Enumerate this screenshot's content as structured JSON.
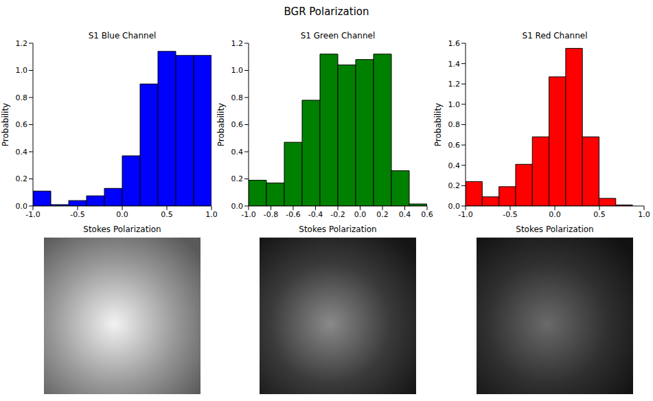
{
  "title": "BGR Polarization",
  "chart_data": [
    {
      "type": "histogram",
      "title": "S1 Blue Channel",
      "x_label": "Stokes Polarization",
      "y_label": "Probability",
      "color": "#0000ff",
      "bins": [
        -1,
        -0.8,
        -0.6,
        -0.4,
        -0.2,
        0,
        0.2,
        0.4,
        0.6,
        0.8,
        1
      ],
      "values": [
        0.11,
        0.01,
        0.04,
        0.075,
        0.13,
        0.37,
        0.9,
        1.14,
        1.11,
        1.11
      ],
      "xlim": [
        -1,
        1
      ],
      "xticks": [
        {
          "value": -1,
          "label": "-1.0"
        },
        {
          "value": -0.5,
          "label": "-0.5"
        },
        {
          "value": 0,
          "label": "0.0"
        },
        {
          "value": 0.5,
          "label": "0.5"
        },
        {
          "value": 1,
          "label": "1.0"
        }
      ],
      "ylim": [
        0,
        1.2
      ],
      "yticks": [
        {
          "value": 0,
          "label": "0.0"
        },
        {
          "value": 0.2,
          "label": "0.2"
        },
        {
          "value": 0.4,
          "label": "0.4"
        },
        {
          "value": 0.6,
          "label": "0.6"
        },
        {
          "value": 0.8,
          "label": "0.8"
        },
        {
          "value": 1,
          "label": "1.0"
        },
        {
          "value": 1.2,
          "label": "1.2"
        }
      ]
    },
    {
      "type": "histogram",
      "title": "S1 Green Channel",
      "x_label": "Stokes Polarization",
      "y_label": "Probability",
      "color": "#008000",
      "bins": [
        -1,
        -0.84,
        -0.68,
        -0.52,
        -0.36,
        -0.2,
        -0.04,
        0.12,
        0.28,
        0.44,
        0.6
      ],
      "values": [
        0.19,
        0.17,
        0.47,
        0.78,
        1.12,
        1.04,
        1.08,
        1.12,
        0.26,
        0.015
      ],
      "xlim": [
        -1,
        0.6
      ],
      "xticks": [
        {
          "value": -1,
          "label": "-1.0"
        },
        {
          "value": -0.8,
          "label": "-0.8"
        },
        {
          "value": -0.6,
          "label": "-0.6"
        },
        {
          "value": -0.4,
          "label": "-0.4"
        },
        {
          "value": -0.2,
          "label": "-0.2"
        },
        {
          "value": 0,
          "label": "0.0"
        },
        {
          "value": 0.2,
          "label": "0.2"
        },
        {
          "value": 0.4,
          "label": "0.4"
        },
        {
          "value": 0.6,
          "label": "0.6"
        }
      ],
      "ylim": [
        0,
        1.2
      ],
      "yticks": [
        {
          "value": 0,
          "label": "0.0"
        },
        {
          "value": 0.2,
          "label": "0.2"
        },
        {
          "value": 0.4,
          "label": "0.4"
        },
        {
          "value": 0.6,
          "label": "0.6"
        },
        {
          "value": 0.8,
          "label": "0.8"
        },
        {
          "value": 1,
          "label": "1.0"
        },
        {
          "value": 1.2,
          "label": "1.2"
        }
      ]
    },
    {
      "type": "histogram",
      "title": "S1 Red Channel",
      "x_label": "Stokes Polarization",
      "y_label": "Probability",
      "color": "#ff0000",
      "bins": [
        -1,
        -0.813,
        -0.626,
        -0.439,
        -0.252,
        -0.065,
        0.122,
        0.309,
        0.496,
        0.683,
        0.87
      ],
      "values": [
        0.24,
        0.09,
        0.19,
        0.41,
        0.68,
        1.27,
        1.55,
        0.68,
        0.075,
        0.01
      ],
      "xlim": [
        -1,
        1
      ],
      "xticks": [
        {
          "value": -1,
          "label": "-1.0"
        },
        {
          "value": -0.5,
          "label": "-0.5"
        },
        {
          "value": 0,
          "label": "0.0"
        },
        {
          "value": 0.5,
          "label": "0.5"
        },
        {
          "value": 1,
          "label": "1.0"
        }
      ],
      "ylim": [
        0,
        1.6
      ],
      "yticks": [
        {
          "value": 0,
          "label": "0.0"
        },
        {
          "value": 0.2,
          "label": "0.2"
        },
        {
          "value": 0.4,
          "label": "0.4"
        },
        {
          "value": 0.6,
          "label": "0.6"
        },
        {
          "value": 0.8,
          "label": "0.8"
        },
        {
          "value": 1,
          "label": "1.0"
        },
        {
          "value": 1.2,
          "label": "1.2"
        },
        {
          "value": 1.4,
          "label": "1.4"
        },
        {
          "value": 1.6,
          "label": "1.6"
        }
      ]
    }
  ]
}
